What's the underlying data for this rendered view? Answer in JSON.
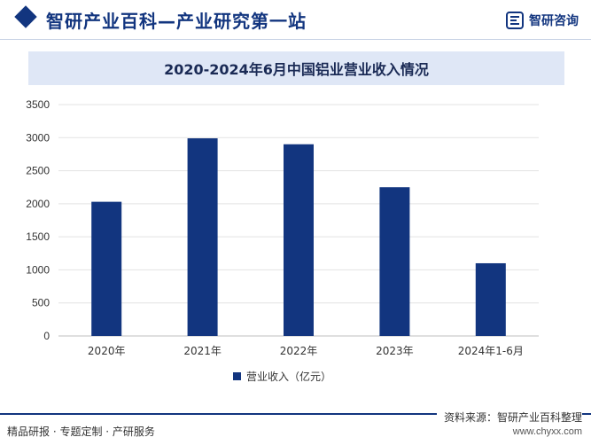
{
  "header": {
    "site_title": "智研产业百科—产业研究第一站",
    "logo_text": "智研咨询",
    "logo_icon": "zhiyan-logo-icon"
  },
  "chart_data": {
    "type": "bar",
    "title": "2020-2024年6月中国铝业营业收入情况",
    "categories": [
      "2020年",
      "2021年",
      "2022年",
      "2023年",
      "2024年1-6月"
    ],
    "series": [
      {
        "name": "营业收入（亿元）",
        "values": [
          2030,
          2990,
          2900,
          2250,
          1100
        ]
      }
    ],
    "ylim": [
      0,
      3500
    ],
    "yticks": [
      0,
      500,
      1000,
      1500,
      2000,
      2500,
      3000,
      3500
    ],
    "grid": true,
    "legend_position": "bottom",
    "bar_color": "#12357f"
  },
  "footer": {
    "left_text": "精品研报 · 专题定制 · 产研服务",
    "source_text": "资料来源：智研产业百科整理",
    "url_text": "www.chyxx.com"
  }
}
